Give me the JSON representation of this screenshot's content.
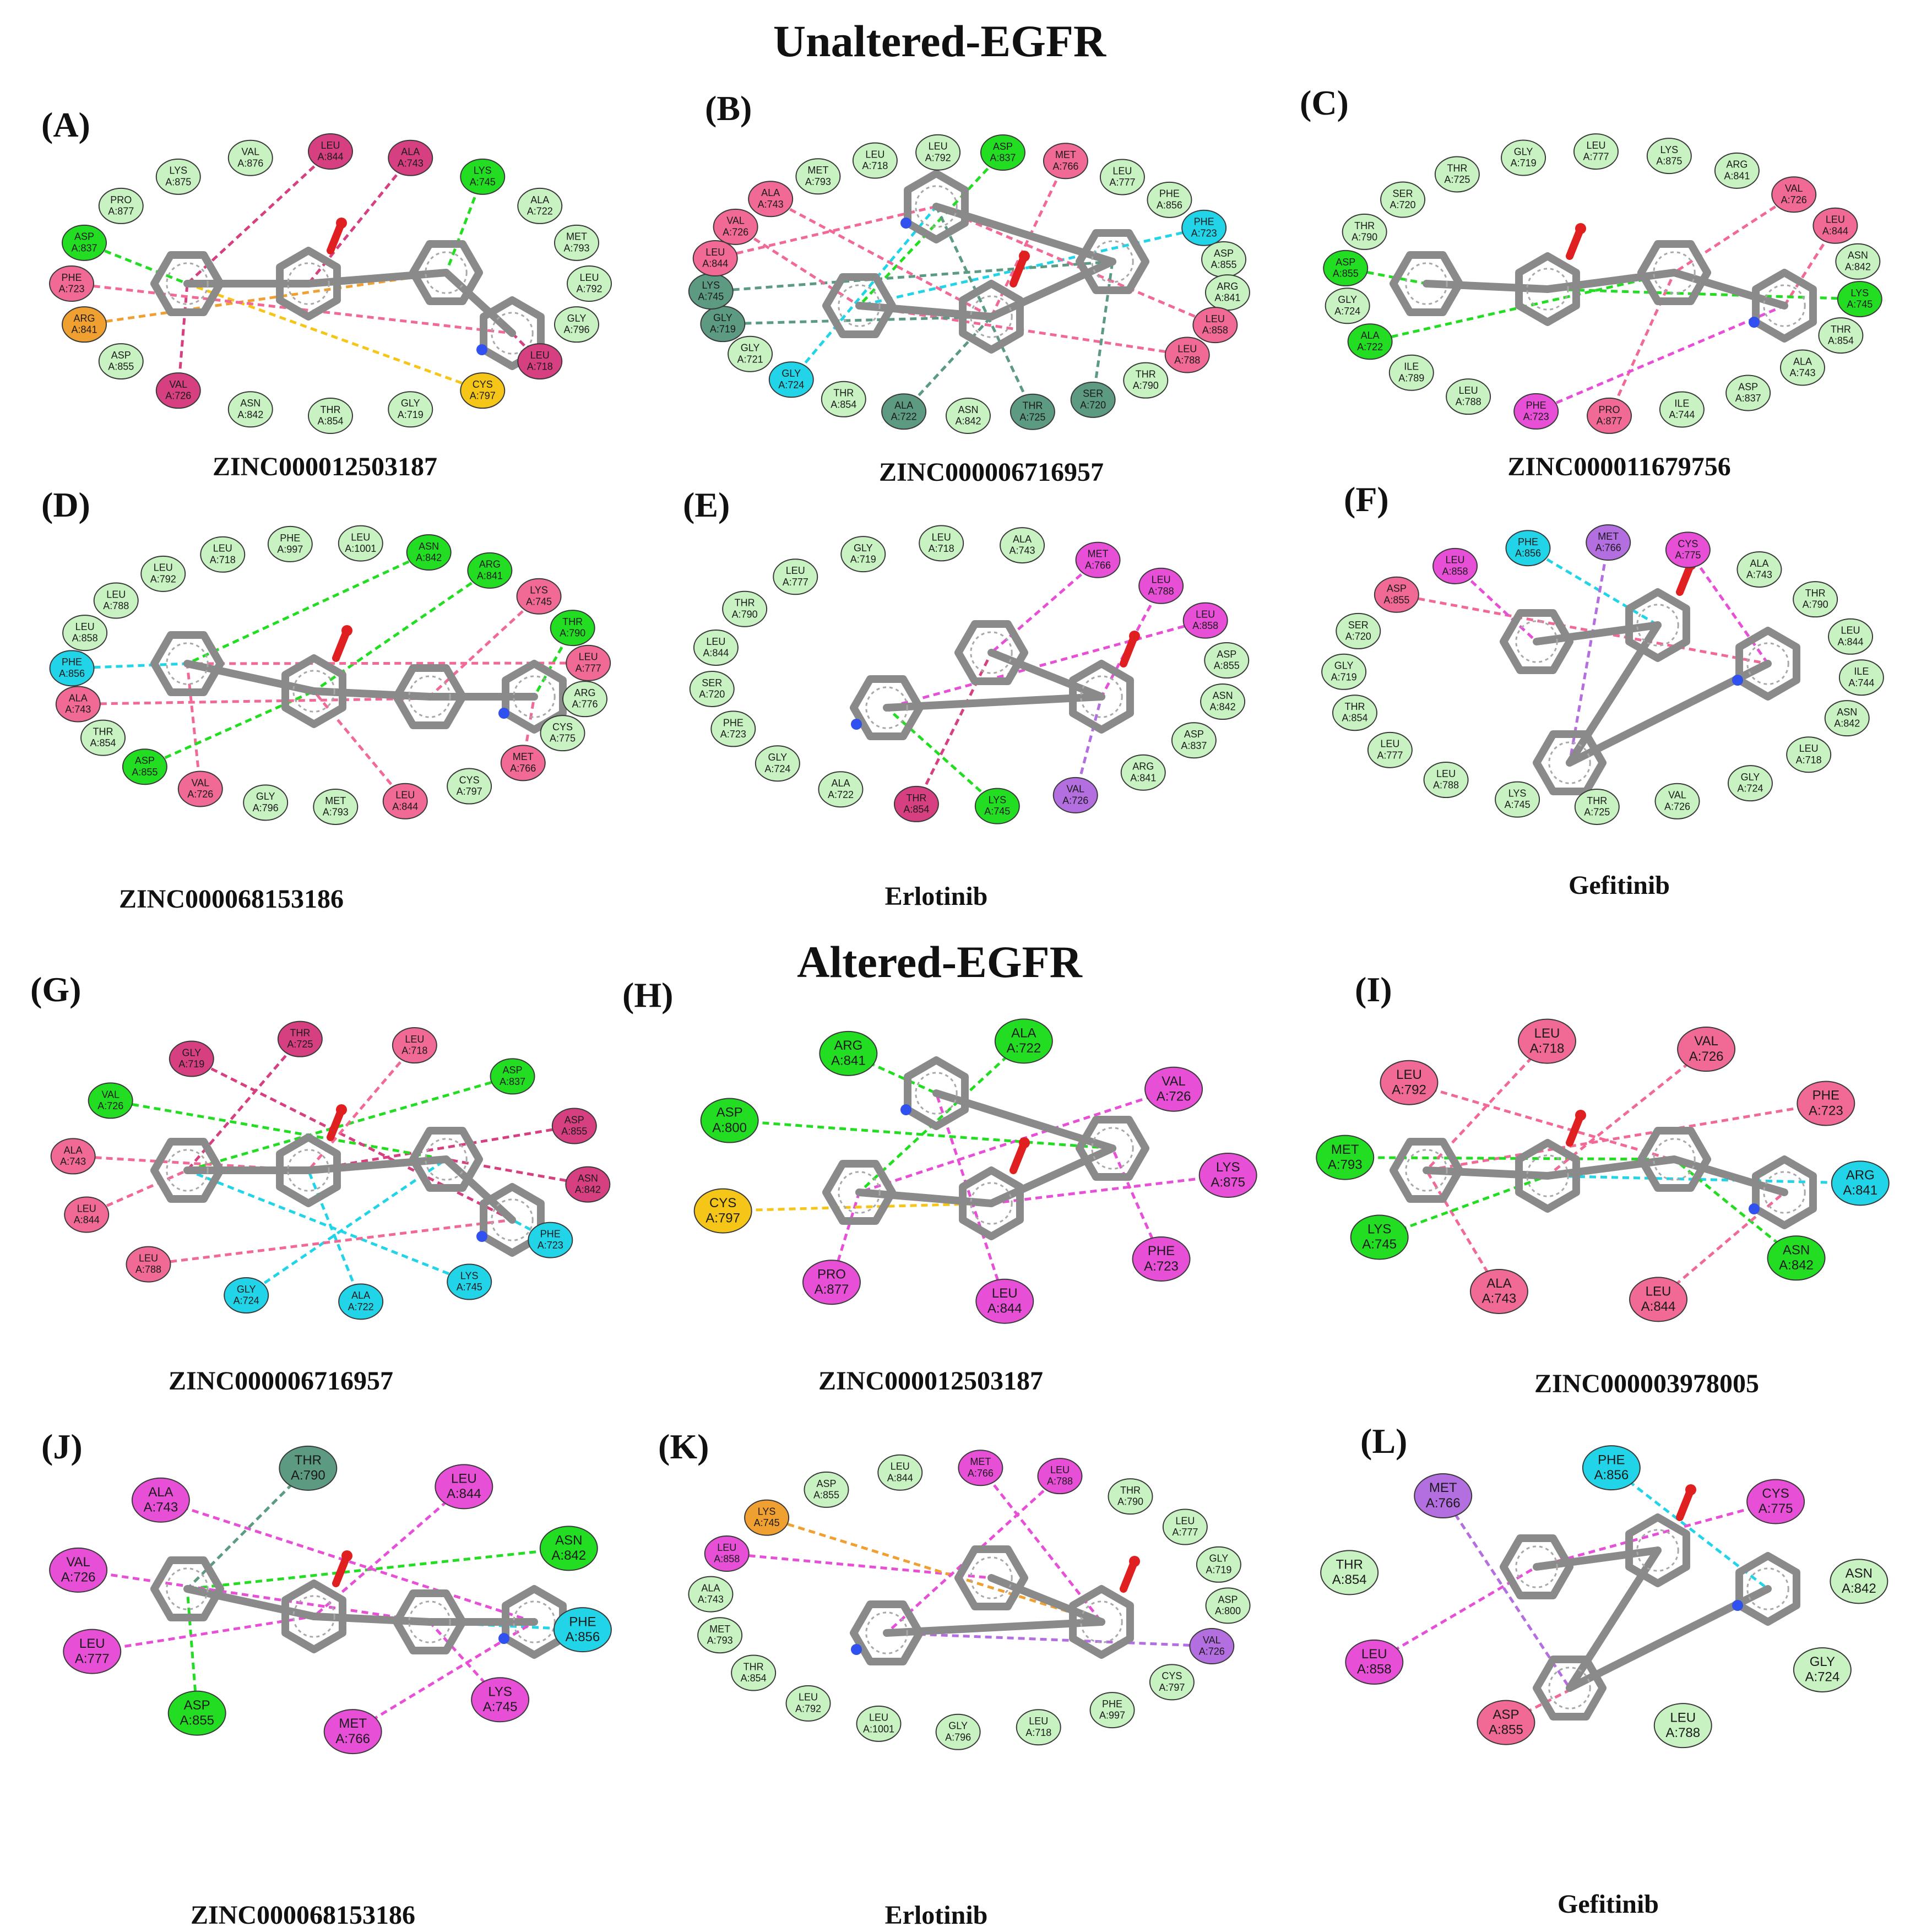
{
  "titles": {
    "unaltered": "Unaltered-EGFR",
    "altered": "Altered-EGFR"
  },
  "colors": {
    "hbond": "#22dd22",
    "vdw": "#c9f2c3",
    "pi_alkyl": "#f06a95",
    "alkyl": "#e64fd6",
    "pi_sigma": "#b36ee0",
    "pi_anion": "#f0a030",
    "pi_sulfur": "#f5c518",
    "halogen": "#22d4e8",
    "carbon_h": "#5c9a82",
    "unfav": "#d64080",
    "ligand_carbon": "#8a8a8a",
    "oxygen": "#e02020",
    "nitrogen": "#3050f0",
    "sulfur": "#e8c020",
    "fluorine": "#80e0f0"
  },
  "panels": [
    {
      "id": "A",
      "letter": "(A)",
      "name": "ZINC000012503187",
      "residues": [
        {
          "l": "LEU A:844",
          "t": "unfav"
        },
        {
          "l": "ALA A:743",
          "t": "unfav"
        },
        {
          "l": "LYS A:745",
          "t": "hbond"
        },
        {
          "l": "ALA A:722",
          "t": "vdw"
        },
        {
          "l": "MET A:793",
          "t": "vdw"
        },
        {
          "l": "LEU A:792",
          "t": "vdw"
        },
        {
          "l": "GLY A:796",
          "t": "vdw"
        },
        {
          "l": "LEU A:718",
          "t": "unfav"
        },
        {
          "l": "CYS A:797",
          "t": "pi_sulfur"
        },
        {
          "l": "GLY A:719",
          "t": "vdw"
        },
        {
          "l": "THR A:854",
          "t": "vdw"
        },
        {
          "l": "ASN A:842",
          "t": "vdw"
        },
        {
          "l": "VAL A:726",
          "t": "unfav"
        },
        {
          "l": "ASP A:855",
          "t": "vdw"
        },
        {
          "l": "ARG A:841",
          "t": "pi_anion"
        },
        {
          "l": "PHE A:723",
          "t": "pi_alkyl"
        },
        {
          "l": "ASP A:837",
          "t": "hbond"
        },
        {
          "l": "PRO A:877",
          "t": "vdw"
        },
        {
          "l": "LYS A:875",
          "t": "vdw"
        },
        {
          "l": "VAL A:876",
          "t": "vdw"
        }
      ]
    },
    {
      "id": "B",
      "letter": "(B)",
      "name": "ZINC000006716957",
      "residues": [
        {
          "l": "ASP A:837",
          "t": "hbond"
        },
        {
          "l": "MET A:766",
          "t": "pi_alkyl"
        },
        {
          "l": "LEU A:777",
          "t": "vdw"
        },
        {
          "l": "PHE A:856",
          "t": "vdw"
        },
        {
          "l": "PHE A:723",
          "t": "halogen"
        },
        {
          "l": "ASP A:855",
          "t": "vdw"
        },
        {
          "l": "ARG A:841",
          "t": "vdw"
        },
        {
          "l": "LEU A:858",
          "t": "pi_alkyl"
        },
        {
          "l": "LEU A:788",
          "t": "pi_alkyl"
        },
        {
          "l": "THR A:790",
          "t": "vdw"
        },
        {
          "l": "SER A:720",
          "t": "carbon_h"
        },
        {
          "l": "THR A:725",
          "t": "carbon_h"
        },
        {
          "l": "ASN A:842",
          "t": "vdw"
        },
        {
          "l": "ALA A:722",
          "t": "carbon_h"
        },
        {
          "l": "THR A:854",
          "t": "vdw"
        },
        {
          "l": "GLY A:724",
          "t": "halogen"
        },
        {
          "l": "GLY A:721",
          "t": "vdw"
        },
        {
          "l": "GLY A:719",
          "t": "carbon_h"
        },
        {
          "l": "LYS A:745",
          "t": "carbon_h"
        },
        {
          "l": "LEU A:844",
          "t": "pi_alkyl"
        },
        {
          "l": "VAL A:726",
          "t": "pi_alkyl"
        },
        {
          "l": "ALA A:743",
          "t": "pi_alkyl"
        },
        {
          "l": "MET A:793",
          "t": "vdw"
        },
        {
          "l": "LEU A:718",
          "t": "vdw"
        },
        {
          "l": "LEU A:792",
          "t": "vdw"
        }
      ]
    },
    {
      "id": "C",
      "letter": "(C)",
      "name": "ZINC000011679756",
      "residues": [
        {
          "l": "LYS A:875",
          "t": "vdw"
        },
        {
          "l": "ARG A:841",
          "t": "vdw"
        },
        {
          "l": "VAL A:726",
          "t": "pi_alkyl"
        },
        {
          "l": "LEU A:844",
          "t": "pi_alkyl"
        },
        {
          "l": "ASN A:842",
          "t": "vdw"
        },
        {
          "l": "LYS A:745",
          "t": "hbond"
        },
        {
          "l": "THR A:854",
          "t": "vdw"
        },
        {
          "l": "ALA A:743",
          "t": "vdw"
        },
        {
          "l": "ASP A:837",
          "t": "vdw"
        },
        {
          "l": "ILE A:744",
          "t": "vdw"
        },
        {
          "l": "PRO A:877",
          "t": "pi_alkyl"
        },
        {
          "l": "PHE A:723",
          "t": "alkyl"
        },
        {
          "l": "LEU A:788",
          "t": "vdw"
        },
        {
          "l": "ILE A:789",
          "t": "vdw"
        },
        {
          "l": "ALA A:722",
          "t": "hbond"
        },
        {
          "l": "GLY A:724",
          "t": "vdw"
        },
        {
          "l": "ASP A:855",
          "t": "hbond"
        },
        {
          "l": "THR A:790",
          "t": "vdw"
        },
        {
          "l": "SER A:720",
          "t": "vdw"
        },
        {
          "l": "THR A:725",
          "t": "vdw"
        },
        {
          "l": "GLY A:719",
          "t": "vdw"
        },
        {
          "l": "LEU A:777",
          "t": "vdw"
        }
      ]
    },
    {
      "id": "D",
      "letter": "(D)",
      "name": "ZINC000068153186",
      "residues": [
        {
          "l": "ASN A:842",
          "t": "hbond"
        },
        {
          "l": "ARG A:841",
          "t": "hbond"
        },
        {
          "l": "LYS A:745",
          "t": "pi_alkyl"
        },
        {
          "l": "THR A:790",
          "t": "hbond"
        },
        {
          "l": "LEU A:777",
          "t": "pi_alkyl"
        },
        {
          "l": "ARG A:776",
          "t": "vdw"
        },
        {
          "l": "CYS A:775",
          "t": "vdw"
        },
        {
          "l": "MET A:766",
          "t": "pi_alkyl"
        },
        {
          "l": "CYS A:797",
          "t": "vdw"
        },
        {
          "l": "LEU A:844",
          "t": "pi_alkyl"
        },
        {
          "l": "MET A:793",
          "t": "vdw"
        },
        {
          "l": "GLY A:796",
          "t": "vdw"
        },
        {
          "l": "VAL A:726",
          "t": "pi_alkyl"
        },
        {
          "l": "ASP A:855",
          "t": "hbond"
        },
        {
          "l": "THR A:854",
          "t": "vdw"
        },
        {
          "l": "ALA A:743",
          "t": "pi_alkyl"
        },
        {
          "l": "PHE A:856",
          "t": "halogen"
        },
        {
          "l": "LEU A:858",
          "t": "vdw"
        },
        {
          "l": "LEU A:788",
          "t": "vdw"
        },
        {
          "l": "LEU A:792",
          "t": "vdw"
        },
        {
          "l": "LEU A:718",
          "t": "vdw"
        },
        {
          "l": "PHE A:997",
          "t": "vdw"
        },
        {
          "l": "LEU A:1001",
          "t": "vdw"
        }
      ]
    },
    {
      "id": "E",
      "letter": "(E)",
      "name": "Erlotinib",
      "residues": [
        {
          "l": "MET A:766",
          "t": "alkyl"
        },
        {
          "l": "LEU A:788",
          "t": "alkyl"
        },
        {
          "l": "LEU A:858",
          "t": "alkyl"
        },
        {
          "l": "ASP A:855",
          "t": "vdw"
        },
        {
          "l": "ASN A:842",
          "t": "vdw"
        },
        {
          "l": "ASP A:837",
          "t": "vdw"
        },
        {
          "l": "ARG A:841",
          "t": "vdw"
        },
        {
          "l": "VAL A:726",
          "t": "pi_sigma"
        },
        {
          "l": "LYS A:745",
          "t": "hbond"
        },
        {
          "l": "THR A:854",
          "t": "unfav"
        },
        {
          "l": "ALA A:722",
          "t": "vdw"
        },
        {
          "l": "GLY A:724",
          "t": "vdw"
        },
        {
          "l": "PHE A:723",
          "t": "vdw"
        },
        {
          "l": "SER A:720",
          "t": "vdw"
        },
        {
          "l": "LEU A:844",
          "t": "vdw"
        },
        {
          "l": "THR A:790",
          "t": "vdw"
        },
        {
          "l": "LEU A:777",
          "t": "vdw"
        },
        {
          "l": "GLY A:719",
          "t": "vdw"
        },
        {
          "l": "LEU A:718",
          "t": "vdw"
        },
        {
          "l": "ALA A:743",
          "t": "vdw"
        }
      ]
    },
    {
      "id": "F",
      "letter": "(F)",
      "name": "Gefitinib",
      "residues": [
        {
          "l": "ALA A:743",
          "t": "vdw"
        },
        {
          "l": "THR A:790",
          "t": "vdw"
        },
        {
          "l": "LEU A:844",
          "t": "vdw"
        },
        {
          "l": "ILE A:744",
          "t": "vdw"
        },
        {
          "l": "ASN A:842",
          "t": "vdw"
        },
        {
          "l": "LEU A:718",
          "t": "vdw"
        },
        {
          "l": "GLY A:724",
          "t": "vdw"
        },
        {
          "l": "VAL A:726",
          "t": "vdw"
        },
        {
          "l": "THR A:725",
          "t": "vdw"
        },
        {
          "l": "LYS A:745",
          "t": "vdw"
        },
        {
          "l": "LEU A:788",
          "t": "vdw"
        },
        {
          "l": "LEU A:777",
          "t": "vdw"
        },
        {
          "l": "THR A:854",
          "t": "vdw"
        },
        {
          "l": "GLY A:719",
          "t": "vdw"
        },
        {
          "l": "SER A:720",
          "t": "vdw"
        },
        {
          "l": "ASP A:855",
          "t": "pi_alkyl"
        },
        {
          "l": "LEU A:858",
          "t": "alkyl"
        },
        {
          "l": "PHE A:856",
          "t": "halogen"
        },
        {
          "l": "MET A:766",
          "t": "pi_sigma"
        },
        {
          "l": "CYS A:775",
          "t": "alkyl"
        }
      ]
    },
    {
      "id": "G",
      "letter": "(G)",
      "name": "ZINC000006716957",
      "residues": [
        {
          "l": "ASP A:837",
          "t": "hbond"
        },
        {
          "l": "ASP A:855",
          "t": "unfav"
        },
        {
          "l": "ASN A:842",
          "t": "unfav"
        },
        {
          "l": "PHE A:723",
          "t": "halogen"
        },
        {
          "l": "LYS A:745",
          "t": "halogen"
        },
        {
          "l": "ALA A:722",
          "t": "halogen"
        },
        {
          "l": "GLY A:724",
          "t": "halogen"
        },
        {
          "l": "LEU A:788",
          "t": "pi_alkyl"
        },
        {
          "l": "LEU A:844",
          "t": "pi_alkyl"
        },
        {
          "l": "ALA A:743",
          "t": "pi_alkyl"
        },
        {
          "l": "VAL A:726",
          "t": "hbond"
        },
        {
          "l": "GLY A:719",
          "t": "unfav"
        },
        {
          "l": "THR A:725",
          "t": "unfav"
        },
        {
          "l": "LEU A:718",
          "t": "pi_alkyl"
        }
      ]
    },
    {
      "id": "H",
      "letter": "(H)",
      "name": "ZINC000012503187",
      "residues": [
        {
          "l": "VAL A:726",
          "t": "alkyl"
        },
        {
          "l": "LYS A:875",
          "t": "alkyl"
        },
        {
          "l": "PHE A:723",
          "t": "alkyl"
        },
        {
          "l": "LEU A:844",
          "t": "alkyl"
        },
        {
          "l": "PRO A:877",
          "t": "alkyl"
        },
        {
          "l": "CYS A:797",
          "t": "pi_sulfur"
        },
        {
          "l": "ASP A:800",
          "t": "hbond"
        },
        {
          "l": "ARG A:841",
          "t": "hbond"
        },
        {
          "l": "ALA A:722",
          "t": "hbond"
        }
      ]
    },
    {
      "id": "I",
      "letter": "(I)",
      "name": "ZINC000003978005",
      "residues": [
        {
          "l": "PHE A:723",
          "t": "pi_alkyl"
        },
        {
          "l": "ARG A:841",
          "t": "halogen"
        },
        {
          "l": "ASN A:842",
          "t": "hbond"
        },
        {
          "l": "LEU A:844",
          "t": "pi_alkyl"
        },
        {
          "l": "ALA A:743",
          "t": "pi_alkyl"
        },
        {
          "l": "LYS A:745",
          "t": "hbond"
        },
        {
          "l": "MET A:793",
          "t": "hbond"
        },
        {
          "l": "LEU A:792",
          "t": "pi_alkyl"
        },
        {
          "l": "LEU A:718",
          "t": "pi_alkyl"
        },
        {
          "l": "VAL A:726",
          "t": "pi_alkyl"
        }
      ]
    },
    {
      "id": "J",
      "letter": "(J)",
      "name": "ZINC000068153186",
      "residues": [
        {
          "l": "ASN A:842",
          "t": "hbond"
        },
        {
          "l": "PHE A:856",
          "t": "halogen"
        },
        {
          "l": "LYS A:745",
          "t": "alkyl"
        },
        {
          "l": "MET A:766",
          "t": "alkyl"
        },
        {
          "l": "ASP A:855",
          "t": "hbond"
        },
        {
          "l": "LEU A:777",
          "t": "alkyl"
        },
        {
          "l": "VAL A:726",
          "t": "alkyl"
        },
        {
          "l": "ALA A:743",
          "t": "alkyl"
        },
        {
          "l": "THR A:790",
          "t": "carbon_h"
        },
        {
          "l": "LEU A:844",
          "t": "alkyl"
        }
      ]
    },
    {
      "id": "K",
      "letter": "(K)",
      "name": "Erlotinib",
      "residues": [
        {
          "l": "GLY A:719",
          "t": "vdw"
        },
        {
          "l": "ASP A:800",
          "t": "vdw"
        },
        {
          "l": "VAL A:726",
          "t": "pi_sigma"
        },
        {
          "l": "CYS A:797",
          "t": "vdw"
        },
        {
          "l": "PHE A:997",
          "t": "vdw"
        },
        {
          "l": "LEU A:718",
          "t": "vdw"
        },
        {
          "l": "GLY A:796",
          "t": "vdw"
        },
        {
          "l": "LEU A:1001",
          "t": "vdw"
        },
        {
          "l": "LEU A:792",
          "t": "vdw"
        },
        {
          "l": "THR A:854",
          "t": "vdw"
        },
        {
          "l": "MET A:793",
          "t": "vdw"
        },
        {
          "l": "ALA A:743",
          "t": "vdw"
        },
        {
          "l": "LEU A:858",
          "t": "alkyl"
        },
        {
          "l": "LYS A:745",
          "t": "pi_anion"
        },
        {
          "l": "ASP A:855",
          "t": "vdw"
        },
        {
          "l": "LEU A:844",
          "t": "vdw"
        },
        {
          "l": "MET A:766",
          "t": "alkyl"
        },
        {
          "l": "LEU A:788",
          "t": "alkyl"
        },
        {
          "l": "THR A:790",
          "t": "vdw"
        },
        {
          "l": "LEU A:777",
          "t": "vdw"
        }
      ]
    },
    {
      "id": "L",
      "letter": "(L)",
      "name": "Gefitinib",
      "residues": [
        {
          "l": "ASN A:842",
          "t": "vdw"
        },
        {
          "l": "GLY A:724",
          "t": "vdw"
        },
        {
          "l": "LEU A:788",
          "t": "vdw"
        },
        {
          "l": "ASP A:855",
          "t": "pi_alkyl"
        },
        {
          "l": "LEU A:858",
          "t": "alkyl"
        },
        {
          "l": "THR A:854",
          "t": "vdw"
        },
        {
          "l": "MET A:766",
          "t": "pi_sigma"
        },
        {
          "l": "PHE A:856",
          "t": "halogen"
        },
        {
          "l": "CYS A:775",
          "t": "alkyl"
        }
      ]
    }
  ]
}
